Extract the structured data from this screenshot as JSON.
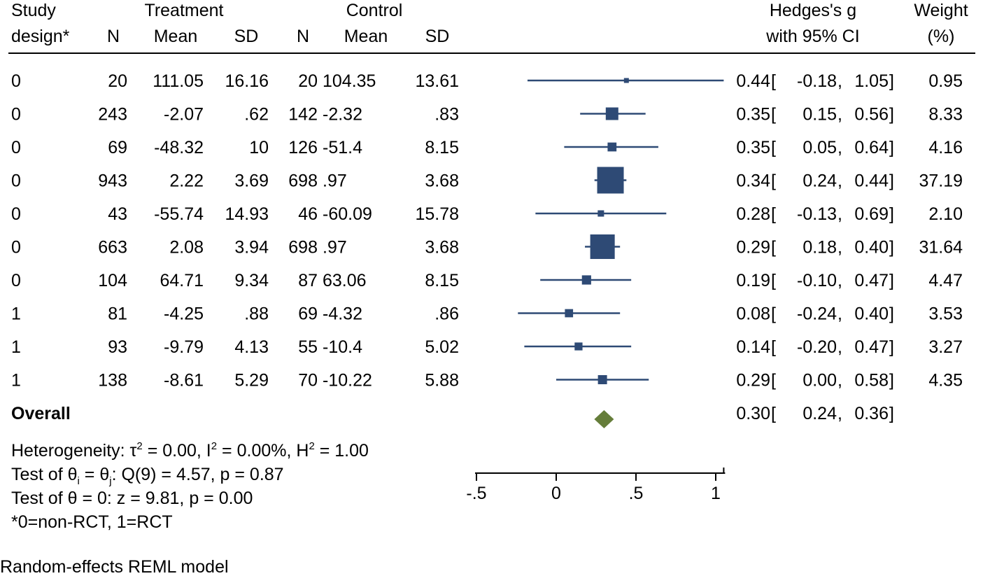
{
  "header": {
    "study_design": [
      "Study",
      "design*"
    ],
    "treatment": "Treatment",
    "control": "Control",
    "n": "N",
    "mean": "Mean",
    "sd": "SD",
    "effect": [
      "Hedges's g",
      "with 95% CI"
    ],
    "weight": [
      "Weight",
      "(%)"
    ]
  },
  "chart_data": {
    "type": "forest",
    "xlabel": "",
    "xlim": [
      -0.5,
      1.05
    ],
    "xticks": [
      -0.5,
      0,
      0.5,
      1
    ],
    "xtick_labels": [
      "-.5",
      "0",
      ".5",
      "1"
    ],
    "columns": [
      "Study design*",
      "Treatment N",
      "Treatment Mean",
      "Treatment SD",
      "Control N",
      "Control Mean",
      "Control SD",
      "Hedges's g with 95% CI",
      "Weight (%)"
    ],
    "studies": [
      {
        "design": "0",
        "t_n": "20",
        "t_mean": "111.05",
        "t_sd": "16.16",
        "c_n": "20",
        "c_mean": "104.35",
        "c_sd": "13.61",
        "g": 0.44,
        "lo": -0.18,
        "hi": 1.05,
        "g_label": "0.44",
        "lo_label": "-0.18",
        "hi_label": "1.05",
        "weight": 0.95,
        "weight_label": "0.95"
      },
      {
        "design": "0",
        "t_n": "243",
        "t_mean": "-2.07",
        "t_sd": ".62",
        "c_n": "142",
        "c_mean": "-2.32",
        "c_sd": ".83",
        "g": 0.35,
        "lo": 0.15,
        "hi": 0.56,
        "g_label": "0.35",
        "lo_label": "0.15",
        "hi_label": "0.56",
        "weight": 8.33,
        "weight_label": "8.33"
      },
      {
        "design": "0",
        "t_n": "69",
        "t_mean": "-48.32",
        "t_sd": "10",
        "c_n": "126",
        "c_mean": "-51.4",
        "c_sd": "8.15",
        "g": 0.35,
        "lo": 0.05,
        "hi": 0.64,
        "g_label": "0.35",
        "lo_label": "0.05",
        "hi_label": "0.64",
        "weight": 4.16,
        "weight_label": "4.16"
      },
      {
        "design": "0",
        "t_n": "943",
        "t_mean": "2.22",
        "t_sd": "3.69",
        "c_n": "698",
        "c_mean": ".97",
        "c_sd": "3.68",
        "g": 0.34,
        "lo": 0.24,
        "hi": 0.44,
        "g_label": "0.34",
        "lo_label": "0.24",
        "hi_label": "0.44",
        "weight": 37.19,
        "weight_label": "37.19"
      },
      {
        "design": "0",
        "t_n": "43",
        "t_mean": "-55.74",
        "t_sd": "14.93",
        "c_n": "46",
        "c_mean": "-60.09",
        "c_sd": "15.78",
        "g": 0.28,
        "lo": -0.13,
        "hi": 0.69,
        "g_label": "0.28",
        "lo_label": "-0.13",
        "hi_label": "0.69",
        "weight": 2.1,
        "weight_label": "2.10"
      },
      {
        "design": "0",
        "t_n": "663",
        "t_mean": "2.08",
        "t_sd": "3.94",
        "c_n": "698",
        "c_mean": ".97",
        "c_sd": "3.68",
        "g": 0.29,
        "lo": 0.18,
        "hi": 0.4,
        "g_label": "0.29",
        "lo_label": "0.18",
        "hi_label": "0.40",
        "weight": 31.64,
        "weight_label": "31.64"
      },
      {
        "design": "0",
        "t_n": "104",
        "t_mean": "64.71",
        "t_sd": "9.34",
        "c_n": "87",
        "c_mean": "63.06",
        "c_sd": "8.15",
        "g": 0.19,
        "lo": -0.1,
        "hi": 0.47,
        "g_label": "0.19",
        "lo_label": "-0.10",
        "hi_label": "0.47",
        "weight": 4.47,
        "weight_label": "4.47"
      },
      {
        "design": "1",
        "t_n": "81",
        "t_mean": "-4.25",
        "t_sd": ".88",
        "c_n": "69",
        "c_mean": "-4.32",
        "c_sd": ".86",
        "g": 0.08,
        "lo": -0.24,
        "hi": 0.4,
        "g_label": "0.08",
        "lo_label": "-0.24",
        "hi_label": "0.40",
        "weight": 3.53,
        "weight_label": "3.53"
      },
      {
        "design": "1",
        "t_n": "93",
        "t_mean": "-9.79",
        "t_sd": "4.13",
        "c_n": "55",
        "c_mean": "-10.4",
        "c_sd": "5.02",
        "g": 0.14,
        "lo": -0.2,
        "hi": 0.47,
        "g_label": "0.14",
        "lo_label": "-0.20",
        "hi_label": "0.47",
        "weight": 3.27,
        "weight_label": "3.27"
      },
      {
        "design": "1",
        "t_n": "138",
        "t_mean": "-8.61",
        "t_sd": "5.29",
        "c_n": "70",
        "c_mean": "-10.22",
        "c_sd": "5.88",
        "g": 0.29,
        "lo": 0.0,
        "hi": 0.58,
        "g_label": "0.29",
        "lo_label": "0.00",
        "hi_label": "0.58",
        "weight": 4.35,
        "weight_label": "4.35"
      }
    ],
    "overall": {
      "label": "Overall",
      "g": 0.3,
      "lo": 0.24,
      "hi": 0.36,
      "g_label": "0.30",
      "lo_label": "0.24",
      "hi_label": "0.36"
    },
    "marker_color": "#2e4a75",
    "overall_color": "#657d3a"
  },
  "notes": {
    "heterogeneity": "Heterogeneity: τ² = 0.00, I² = 0.00%, H² = 1.00",
    "test_theta_ij": "Test of θi = θj: Q(9) = 4.57, p = 0.87",
    "test_theta_0": "Test of θ = 0: z = 9.81, p = 0.00",
    "design_key": "*0=non-RCT, 1=RCT",
    "model": "Random-effects REML model"
  }
}
